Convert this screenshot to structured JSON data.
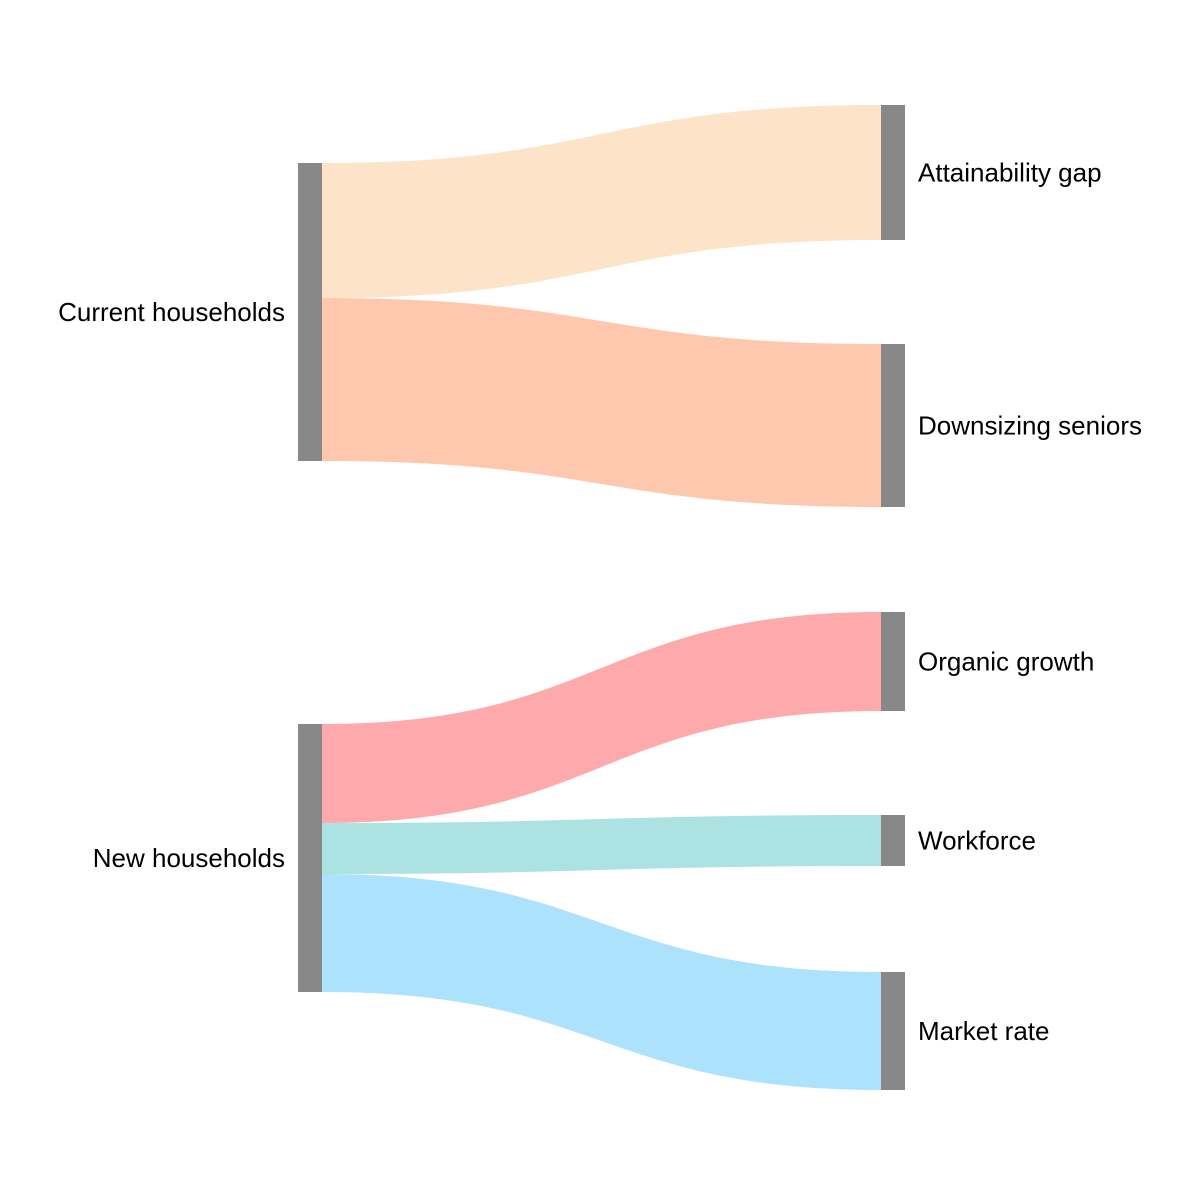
{
  "nodes": [
    {
      "id": "current",
      "label": "Current households",
      "side": "left"
    },
    {
      "id": "new",
      "label": "New households",
      "side": "left"
    },
    {
      "id": "attain",
      "label": "Attainability gap",
      "side": "right"
    },
    {
      "id": "down",
      "label": "Downsizing seniors",
      "side": "right"
    },
    {
      "id": "organic",
      "label": "Organic growth",
      "side": "right"
    },
    {
      "id": "work",
      "label": "Workforce",
      "side": "right"
    },
    {
      "id": "market",
      "label": "Market rate",
      "side": "right"
    }
  ],
  "links": [
    {
      "source": "current",
      "target": "attain",
      "value": 135,
      "color": "#fde3c8"
    },
    {
      "source": "current",
      "target": "down",
      "value": 163,
      "color": "#fec8ae"
    },
    {
      "source": "new",
      "target": "organic",
      "value": 99,
      "color": "#fea9ab"
    },
    {
      "source": "new",
      "target": "work",
      "value": 51,
      "color": "#ade2e2"
    },
    {
      "source": "new",
      "target": "market",
      "value": 118,
      "color": "#ade2fd"
    }
  ],
  "node_color": "#888888"
}
